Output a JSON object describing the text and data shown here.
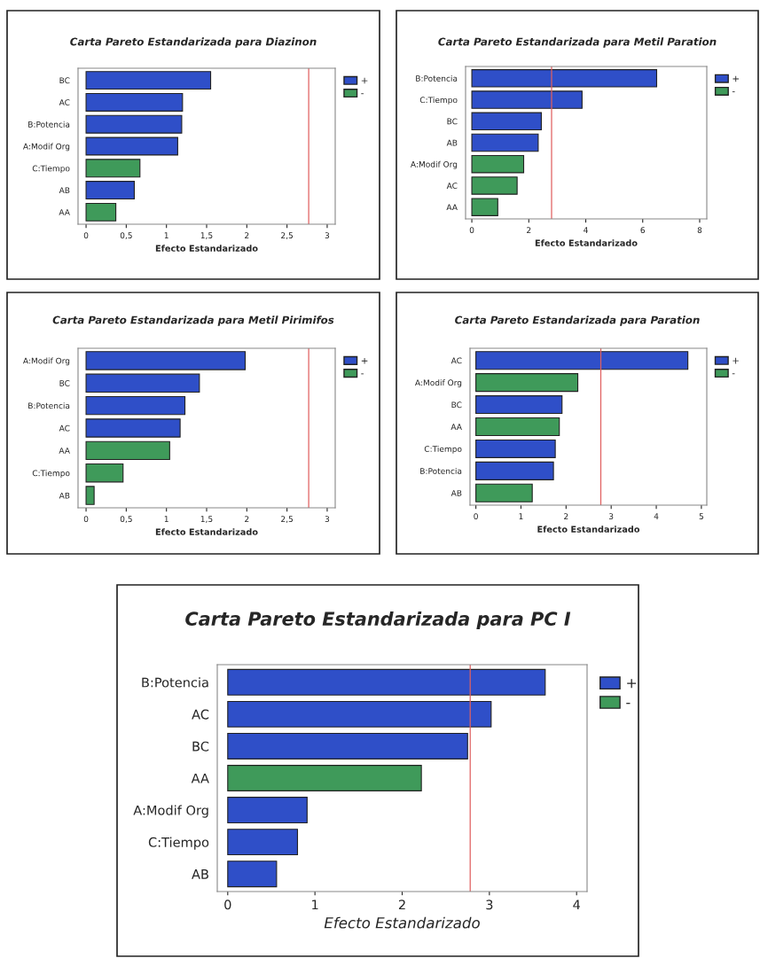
{
  "chart_data": [
    {
      "type": "bar",
      "orientation": "horizontal",
      "title": "Carta Pareto Estandarizada para Diazinon",
      "xlabel": "Efecto Estandarizado",
      "categories": [
        "BC",
        "AC",
        "B:Potencia",
        "A:Modif Org",
        "C:Tiempo",
        "AB",
        "AA"
      ],
      "series": [
        {
          "name": "+",
          "color": "#2f4fc8",
          "values": [
            1.55,
            1.2,
            1.19,
            1.14,
            null,
            0.6,
            null
          ]
        },
        {
          "name": "-",
          "color": "#3f9a5a",
          "values": [
            null,
            null,
            null,
            null,
            0.67,
            null,
            0.37
          ]
        }
      ],
      "xlim": [
        -0.1,
        3.1
      ],
      "xticks": [
        0,
        {
          "value": 0.5,
          "label": "0,5"
        },
        1,
        {
          "value": 1.5,
          "label": "1,5"
        },
        2,
        {
          "value": 2.5,
          "label": "2,5"
        },
        3
      ],
      "ref_lines": [
        {
          "axis": "x",
          "value": 2.77,
          "color": "#e06060"
        }
      ],
      "legend": "top right"
    },
    {
      "type": "bar",
      "orientation": "horizontal",
      "title": "Carta Pareto Estandarizada para Metil Paration",
      "xlabel": "Efecto Estandarizado",
      "categories": [
        "B:Potencia",
        "C:Tiempo",
        "BC",
        "AB",
        "A:Modif Org",
        "AC",
        "AA"
      ],
      "series": [
        {
          "name": "+",
          "color": "#2f4fc8",
          "values": [
            6.49,
            3.87,
            2.44,
            2.33,
            null,
            null,
            null
          ]
        },
        {
          "name": "-",
          "color": "#3f9a5a",
          "values": [
            null,
            null,
            null,
            null,
            1.82,
            1.59,
            0.91
          ]
        }
      ],
      "xlim": [
        -0.22,
        8.25
      ],
      "xticks": [
        0,
        2,
        4,
        6,
        8
      ],
      "ref_lines": [
        {
          "axis": "x",
          "value": 2.8,
          "color": "#e06060"
        }
      ],
      "legend": "top right"
    },
    {
      "type": "bar",
      "orientation": "horizontal",
      "title": "Carta Pareto Estandarizada para Metil Pirimifos",
      "xlabel": "Efecto Estandarizado",
      "categories": [
        "A:Modif Org",
        "BC",
        "B:Potencia",
        "AC",
        "AA",
        "C:Tiempo",
        "AB"
      ],
      "series": [
        {
          "name": "+",
          "color": "#2f4fc8",
          "values": [
            1.98,
            1.41,
            1.23,
            1.17,
            null,
            null,
            null
          ]
        },
        {
          "name": "-",
          "color": "#3f9a5a",
          "values": [
            null,
            null,
            null,
            null,
            1.04,
            0.46,
            0.1
          ]
        }
      ],
      "xlim": [
        -0.1,
        3.1
      ],
      "xticks": [
        0,
        {
          "value": 0.5,
          "label": "0,5"
        },
        1,
        {
          "value": 1.5,
          "label": "1,5"
        },
        2,
        {
          "value": 2.5,
          "label": "2,5"
        },
        3
      ],
      "ref_lines": [
        {
          "axis": "x",
          "value": 2.77,
          "color": "#e06060"
        }
      ],
      "legend": "top right"
    },
    {
      "type": "bar",
      "orientation": "horizontal",
      "title": "Carta Pareto Estandarizada para Paration",
      "xlabel": "Efecto Estandarizado",
      "categories": [
        "AC",
        "A:Modif Org",
        "BC",
        "AA",
        "C:Tiempo",
        "B:Potencia",
        "AB"
      ],
      "series": [
        {
          "name": "+",
          "color": "#2f4fc8",
          "values": [
            4.7,
            null,
            1.91,
            null,
            1.76,
            1.72,
            null
          ]
        },
        {
          "name": "-",
          "color": "#3f9a5a",
          "values": [
            null,
            2.26,
            null,
            1.85,
            null,
            null,
            1.25
          ]
        }
      ],
      "xlim": [
        -0.13,
        5.12
      ],
      "xticks": [
        0,
        1,
        2,
        3,
        4,
        5
      ],
      "ref_lines": [
        {
          "axis": "x",
          "value": 2.77,
          "color": "#e06060"
        }
      ],
      "legend": "top right"
    },
    {
      "type": "bar",
      "orientation": "horizontal",
      "title": "Carta Pareto Estandarizada para PC I",
      "xlabel": "Efecto Estandarizado",
      "categories": [
        "B:Potencia",
        "AC",
        "BC",
        "AA",
        "A:Modif Org",
        "C:Tiempo",
        "AB"
      ],
      "series": [
        {
          "name": "+",
          "color": "#2f4fc8",
          "values": [
            3.64,
            3.02,
            2.75,
            null,
            0.91,
            0.8,
            0.56
          ]
        },
        {
          "name": "-",
          "color": "#3f9a5a",
          "values": [
            null,
            null,
            null,
            2.22,
            null,
            null,
            null
          ]
        }
      ],
      "xlim": [
        -0.12,
        4.12
      ],
      "xticks": [
        0,
        1,
        2,
        3,
        4
      ],
      "ref_lines": [
        {
          "axis": "x",
          "value": 2.78,
          "color": "#e06060"
        }
      ],
      "legend": "top right"
    }
  ]
}
